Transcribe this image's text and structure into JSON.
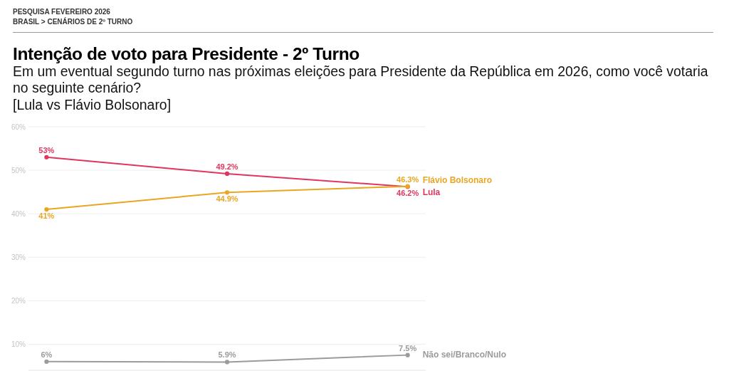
{
  "chart_data": {
    "type": "line",
    "title": "Intenção de voto para Presidente - 2º Turno",
    "subtitle": "Em um eventual segundo turno nas próximas eleições para Presidente da República em 2026, como você votaria no seguinte cenário?",
    "annotations": [
      "PESQUISA FEVEREIRO 2026",
      "BRASIL > CENÁRIOS DE 2º TURNO",
      "[Lula vs Flávio Bolsonaro]"
    ],
    "categories": [
      null,
      null,
      null
    ],
    "series": [
      {
        "name": "Lula",
        "color": "#e0365e",
        "values": [
          53,
          49.2,
          46.2
        ],
        "value_labels": [
          "53%",
          "49.2%",
          "46.2%"
        ]
      },
      {
        "name": "Flávio Bolsonaro",
        "color": "#e8a623",
        "values": [
          41,
          44.9,
          46.3
        ],
        "value_labels": [
          "41%",
          "44.9%",
          "46.3%"
        ]
      },
      {
        "name": "Não sei/Branco/Nulo",
        "color": "#9b9b9b",
        "values": [
          6,
          5.9,
          7.5
        ],
        "value_labels": [
          "6%",
          "5.9%",
          "7.5%"
        ]
      }
    ],
    "ylim": [
      4,
      60
    ],
    "yticks": [
      {
        "value": 10,
        "label": "10%"
      },
      {
        "value": 20,
        "label": "20%"
      },
      {
        "value": 30,
        "label": "30%"
      },
      {
        "value": 40,
        "label": "40%"
      },
      {
        "value": 50,
        "label": "50%"
      },
      {
        "value": 60,
        "label": "60%"
      }
    ],
    "grid": "y",
    "legend": false,
    "tick_labels": "y",
    "marker": "circle",
    "line_style": "solid"
  }
}
